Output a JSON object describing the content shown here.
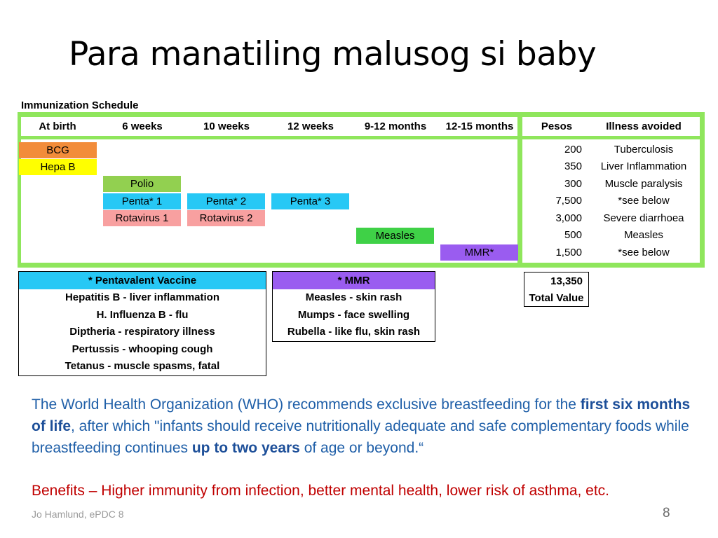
{
  "title": "Para manatiling malusog si baby",
  "schedule": {
    "label": "Immunization Schedule",
    "headers": [
      "At birth",
      "6 weeks",
      "10 weeks",
      "12 weeks",
      "9-12 months",
      "12-15 months",
      "Pesos",
      "Illness avoided"
    ],
    "vaccines": {
      "bcg": "BCG",
      "hepa_b": "Hepa B",
      "polio": "Polio",
      "penta1": "Penta* 1",
      "penta2": "Penta* 2",
      "penta3": "Penta* 3",
      "rota1": "Rotavirus 1",
      "rota2": "Rotavirus 2",
      "measles": "Measles",
      "mmr": "MMR*"
    },
    "pesos": [
      "200",
      "350",
      "300",
      "7,500",
      "3,000",
      "500",
      "1,500"
    ],
    "illness": [
      "Tuberculosis",
      "Liver Inflammation",
      "Muscle paralysis",
      "*see below",
      "Severe diarrhoea",
      "Measles",
      "*see below"
    ],
    "colors": {
      "frame": "#8fe65c",
      "bcg": "#f28c3a",
      "hepa_b": "#ffff00",
      "polio": "#92d050",
      "penta": "#27c8f5",
      "rota": "#f8a0a0",
      "measles": "#3fd147",
      "mmr": "#9a5cf0"
    }
  },
  "pentavalent": {
    "title": "* Pentavalent Vaccine",
    "items": [
      "Hepatitis B - liver inflammation",
      "H. Influenza B - flu",
      "Diptheria - respiratory illness",
      "Pertussis - whooping cough",
      "Tetanus - muscle spasms, fatal"
    ]
  },
  "mmr_box": {
    "title": "* MMR",
    "items": [
      "Measles - skin rash",
      "Mumps - face swelling",
      "Rubella - like flu, skin rash"
    ]
  },
  "total": {
    "value": "13,350",
    "label": "Total Value"
  },
  "paragraph": {
    "p1": "The World Health Organization (WHO) recommends exclusive breastfeeding for the ",
    "b1": "first six months of life",
    "p2": ", after which \"infants should receive nutritionally adequate and safe complementary foods while breastfeeding continues ",
    "b2": "up to two years",
    "p3": " of age or beyond.“"
  },
  "benefits": "Benefits – Higher immunity from infection, better mental health, lower risk of asthma, etc.",
  "footer": {
    "left": "Jo Hamlund, ePDC 8",
    "page": "8"
  }
}
